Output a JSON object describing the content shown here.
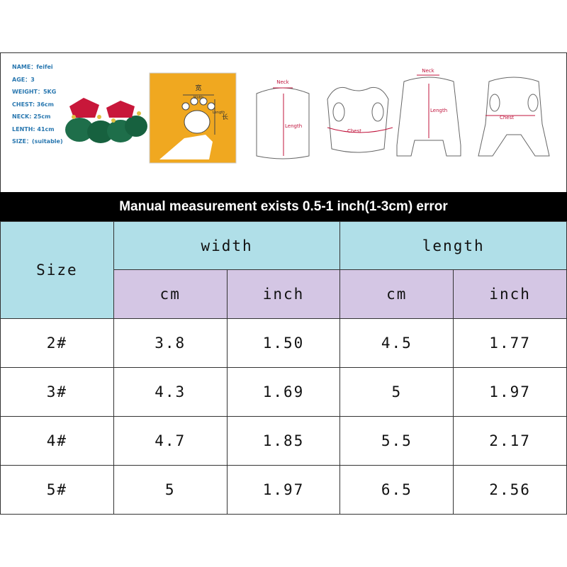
{
  "info": {
    "items": [
      "NAME：feifei",
      "AGE：3",
      "WEIGHT：5KG",
      "CHEST: 36cm",
      "NECK: 25cm",
      "LENTH: 41cm",
      "SIZE：(suitable)"
    ]
  },
  "diagrams": {
    "paw": {
      "width": "Width",
      "length": "Length",
      "width_cn": "宽",
      "length_cn": "长"
    },
    "coat_front": {
      "neck": "Neck",
      "length": "Length"
    },
    "coat_back": {
      "chest": "Chest"
    },
    "suit_front": {
      "neck": "Neck",
      "length": "Length"
    },
    "suit_back": {
      "chest": "Chest"
    }
  },
  "banner": "Manual measurement exists 0.5-1 inch(1-3cm) error",
  "table": {
    "size_header": "Size",
    "groups": [
      "width",
      "length"
    ],
    "units": [
      "cm",
      "inch",
      "cm",
      "inch"
    ],
    "rows": [
      [
        "2#",
        "3.8",
        "1.50",
        "4.5",
        "1.77"
      ],
      [
        "3#",
        "4.3",
        "1.69",
        "5",
        "1.97"
      ],
      [
        "4#",
        "4.7",
        "1.85",
        "5.5",
        "2.17"
      ],
      [
        "5#",
        "5",
        "1.97",
        "6.5",
        "2.56"
      ]
    ]
  }
}
